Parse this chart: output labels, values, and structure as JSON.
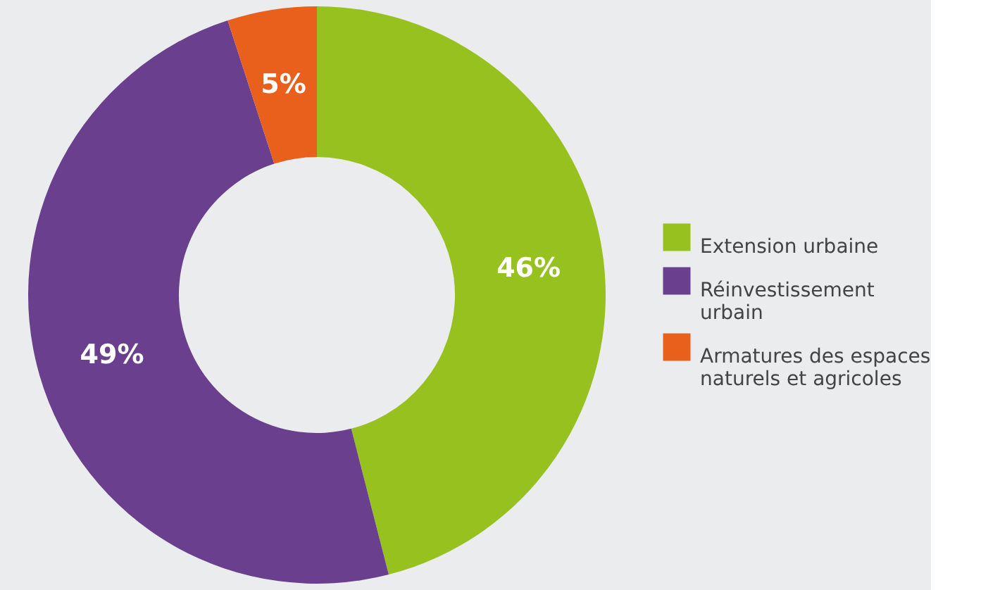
{
  "chart_data": {
    "type": "donut",
    "categories": [
      "Extension urbaine",
      "Réinvestissement urbain",
      "Armatures des espaces naturels et agricoles"
    ],
    "values": [
      46,
      49,
      5
    ],
    "colors": [
      "#96c11f",
      "#6a3f8e",
      "#e8601c"
    ],
    "value_labels": [
      "46%",
      "49%",
      "5%"
    ],
    "legend": "right"
  }
}
